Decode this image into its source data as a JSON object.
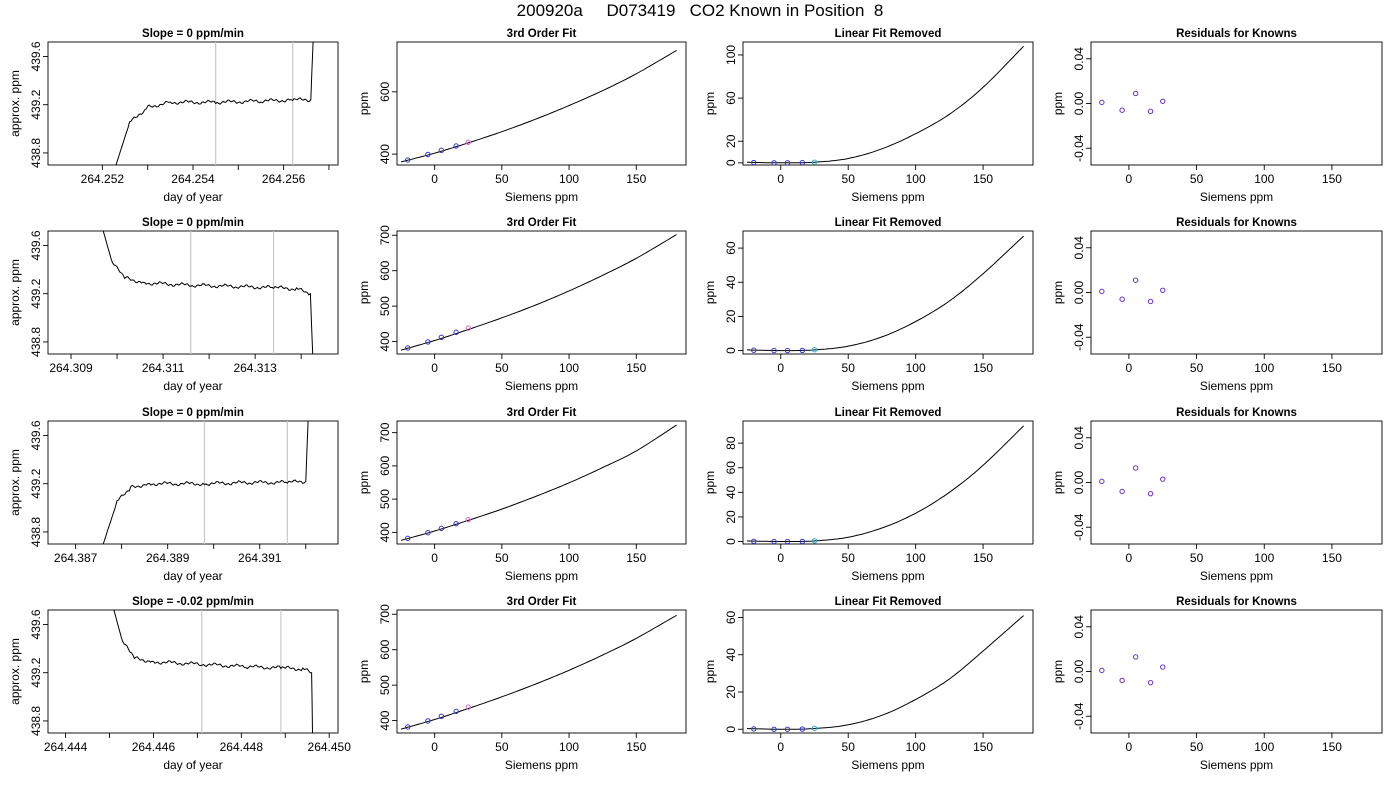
{
  "page": {
    "title": "200920a     D073419   CO2 Known in Position  8"
  },
  "chart_data": [
    {
      "type": "line",
      "row": 0,
      "panel": "timeseries",
      "title": "Slope =  0  ppm/min",
      "xlabel": "day of year",
      "ylabel": "approx. ppm",
      "xlim": [
        264.2508,
        264.2572
      ],
      "ylim": [
        438.7,
        439.72
      ],
      "xticks": [
        264.252,
        264.254,
        264.256
      ],
      "xticks_minor": [
        264.253,
        264.255,
        264.257
      ],
      "yticks": [
        438.8,
        439.2,
        439.6
      ],
      "vlines": [
        264.2545,
        264.2562
      ],
      "series": [
        {
          "x": [
            264.2523,
            264.2526,
            264.253,
            264.2535,
            264.2545,
            264.2555,
            264.2562,
            264.2566,
            264.25665
          ],
          "y": [
            438.7,
            439.05,
            439.18,
            439.22,
            439.22,
            439.23,
            439.24,
            439.24,
            439.72
          ]
        }
      ]
    },
    {
      "type": "line",
      "row": 0,
      "panel": "fit3",
      "title": "3rd Order Fit",
      "xlabel": "Siemens ppm",
      "ylabel": "ppm",
      "xlim": [
        -28,
        187
      ],
      "ylim": [
        365,
        760
      ],
      "xticks": [
        0,
        50,
        100,
        150
      ],
      "yticks": [
        400,
        600
      ],
      "curve": {
        "x": [
          -25,
          0,
          25,
          50,
          75,
          100,
          125,
          150,
          180
        ],
        "y": [
          375,
          403,
          436,
          472,
          512,
          556,
          604,
          658,
          733
        ]
      },
      "points": [
        {
          "x": [
            -20,
            -5,
            5,
            16
          ],
          "y": [
            381,
            399,
            412,
            426
          ],
          "color": "#3333cc"
        },
        {
          "x": [
            25
          ],
          "y": [
            438
          ],
          "color": "#cc66cc"
        }
      ]
    },
    {
      "type": "line",
      "row": 0,
      "panel": "linear-removed",
      "title": "Linear Fit Removed",
      "xlabel": "Siemens ppm",
      "ylabel": "ppm",
      "xlim": [
        -28,
        187
      ],
      "ylim": [
        -2,
        112
      ],
      "xticks": [
        0,
        50,
        100,
        150
      ],
      "yticks": [
        0,
        20,
        60,
        100
      ],
      "curve": {
        "x": [
          -25,
          0,
          25,
          50,
          75,
          100,
          125,
          150,
          180
        ],
        "y": [
          0.5,
          0,
          0.6,
          4,
          13,
          27,
          45,
          70,
          108
        ]
      },
      "points": [
        {
          "x": [
            -20,
            -5,
            5,
            16
          ],
          "y": [
            0.3,
            0,
            0,
            0.2
          ],
          "color": "#3333cc"
        },
        {
          "x": [
            25
          ],
          "y": [
            0.6
          ],
          "color": "#33aacc"
        }
      ]
    },
    {
      "type": "scatter",
      "row": 0,
      "panel": "residuals",
      "title": "Residuals for Knowns",
      "xlabel": "Siemens ppm",
      "ylabel": "ppm",
      "xlim": [
        -28,
        187
      ],
      "ylim": [
        -0.055,
        0.055
      ],
      "xticks": [
        0,
        50,
        100,
        150
      ],
      "yticks": [
        -0.04,
        0.0,
        0.04
      ],
      "ytick_labels": [
        "-0.04",
        "0.00",
        "0.04"
      ],
      "points": [
        {
          "x": [
            -20,
            -5,
            5,
            16,
            25
          ],
          "y": [
            0.001,
            -0.006,
            0.009,
            -0.007,
            0.002
          ],
          "color": "#6633cc"
        }
      ]
    },
    {
      "type": "line",
      "row": 1,
      "panel": "timeseries",
      "title": "Slope =  0  ppm/min",
      "xlabel": "day of year",
      "ylabel": "approx. ppm",
      "xlim": [
        264.3085,
        264.3148
      ],
      "ylim": [
        438.7,
        439.72
      ],
      "xticks": [
        264.309,
        264.311,
        264.313
      ],
      "xticks_minor": [
        264.31,
        264.312,
        264.314
      ],
      "yticks": [
        438.8,
        439.2,
        439.6
      ],
      "vlines": [
        264.3116,
        264.3134
      ],
      "series": [
        {
          "x": [
            264.3097,
            264.3099,
            264.3102,
            264.3106,
            264.3116,
            264.3126,
            264.3134,
            264.3139,
            264.3142,
            264.31425
          ],
          "y": [
            439.72,
            439.45,
            439.33,
            439.29,
            439.27,
            439.26,
            439.25,
            439.24,
            439.2,
            438.7
          ]
        }
      ]
    },
    {
      "type": "line",
      "row": 1,
      "panel": "fit3",
      "title": "3rd Order Fit",
      "xlabel": "Siemens ppm",
      "ylabel": "ppm",
      "xlim": [
        -28,
        187
      ],
      "ylim": [
        365,
        712
      ],
      "xticks": [
        0,
        50,
        100,
        150
      ],
      "yticks": [
        400,
        500,
        600,
        700
      ],
      "curve": {
        "x": [
          -25,
          0,
          25,
          50,
          75,
          100,
          125,
          150,
          180
        ],
        "y": [
          376,
          403,
          434,
          467,
          503,
          543,
          587,
          635,
          702
        ]
      },
      "points": [
        {
          "x": [
            -20,
            -5,
            5,
            16
          ],
          "y": [
            382,
            399,
            412,
            426
          ],
          "color": "#3333cc"
        },
        {
          "x": [
            25
          ],
          "y": [
            438
          ],
          "color": "#cc66cc"
        }
      ]
    },
    {
      "type": "line",
      "row": 1,
      "panel": "linear-removed",
      "title": "Linear Fit Removed",
      "xlabel": "Siemens ppm",
      "ylabel": "ppm",
      "xlim": [
        -28,
        187
      ],
      "ylim": [
        -2,
        70
      ],
      "xticks": [
        0,
        50,
        100,
        150
      ],
      "yticks": [
        0,
        20,
        40,
        60
      ],
      "curve": {
        "x": [
          -25,
          0,
          25,
          50,
          75,
          100,
          125,
          150,
          180
        ],
        "y": [
          0.4,
          0,
          0.4,
          2.6,
          8,
          17,
          29,
          45,
          67
        ]
      },
      "points": [
        {
          "x": [
            -20,
            -5,
            5,
            16
          ],
          "y": [
            0.2,
            0,
            0,
            0.1
          ],
          "color": "#3333cc"
        },
        {
          "x": [
            25
          ],
          "y": [
            0.5
          ],
          "color": "#33aacc"
        }
      ]
    },
    {
      "type": "scatter",
      "row": 1,
      "panel": "residuals",
      "title": "Residuals for Knowns",
      "xlabel": "Siemens ppm",
      "ylabel": "ppm",
      "xlim": [
        -28,
        187
      ],
      "ylim": [
        -0.055,
        0.055
      ],
      "xticks": [
        0,
        50,
        100,
        150
      ],
      "yticks": [
        -0.04,
        0.0,
        0.04
      ],
      "ytick_labels": [
        "-0.04",
        "0.00",
        "0.04"
      ],
      "points": [
        {
          "x": [
            -20,
            -5,
            5,
            16,
            25
          ],
          "y": [
            0.001,
            -0.006,
            0.011,
            -0.008,
            0.002
          ],
          "color": "#6633cc"
        }
      ]
    },
    {
      "type": "line",
      "row": 2,
      "panel": "timeseries",
      "title": "Slope =  0  ppm/min",
      "xlabel": "day of year",
      "ylabel": "approx. ppm",
      "xlim": [
        264.3864,
        264.3927
      ],
      "ylim": [
        438.7,
        439.72
      ],
      "xticks": [
        264.387,
        264.389,
        264.391
      ],
      "xticks_minor": [
        264.388,
        264.39,
        264.392
      ],
      "yticks": [
        438.8,
        439.2,
        439.6
      ],
      "vlines": [
        264.3898,
        264.3916
      ],
      "series": [
        {
          "x": [
            264.3876,
            264.3879,
            264.3882,
            264.3886,
            264.3898,
            264.3908,
            264.3916,
            264.392,
            264.39205
          ],
          "y": [
            438.7,
            439.05,
            439.17,
            439.2,
            439.2,
            439.21,
            439.21,
            439.22,
            439.72
          ]
        }
      ]
    },
    {
      "type": "line",
      "row": 2,
      "panel": "fit3",
      "title": "3rd Order Fit",
      "xlabel": "Siemens ppm",
      "ylabel": "ppm",
      "xlim": [
        -28,
        187
      ],
      "ylim": [
        365,
        735
      ],
      "xticks": [
        0,
        50,
        100,
        150
      ],
      "yticks": [
        400,
        500,
        600,
        700
      ],
      "curve": {
        "x": [
          -25,
          0,
          25,
          50,
          75,
          100,
          125,
          150,
          180
        ],
        "y": [
          376,
          404,
          436,
          470,
          508,
          549,
          595,
          645,
          723
        ]
      },
      "points": [
        {
          "x": [
            -20,
            -5,
            5,
            16
          ],
          "y": [
            382,
            399,
            412,
            426
          ],
          "color": "#3333cc"
        },
        {
          "x": [
            25
          ],
          "y": [
            438
          ],
          "color": "#cc66cc"
        }
      ]
    },
    {
      "type": "line",
      "row": 2,
      "panel": "linear-removed",
      "title": "Linear Fit Removed",
      "xlabel": "Siemens ppm",
      "ylabel": "ppm",
      "xlim": [
        -28,
        187
      ],
      "ylim": [
        -2,
        98
      ],
      "xticks": [
        0,
        50,
        100,
        150
      ],
      "yticks": [
        0,
        20,
        40,
        60,
        80
      ],
      "curve": {
        "x": [
          -25,
          0,
          25,
          50,
          75,
          100,
          125,
          150,
          180
        ],
        "y": [
          0.5,
          0,
          0.5,
          3.5,
          11,
          23,
          40,
          62,
          94
        ]
      },
      "points": [
        {
          "x": [
            -20,
            -5,
            5,
            16
          ],
          "y": [
            0.2,
            0,
            0,
            0.1
          ],
          "color": "#3333cc"
        },
        {
          "x": [
            25
          ],
          "y": [
            0.6
          ],
          "color": "#33aacc"
        }
      ]
    },
    {
      "type": "scatter",
      "row": 2,
      "panel": "residuals",
      "title": "Residuals for Knowns",
      "xlabel": "Siemens ppm",
      "ylabel": "ppm",
      "xlim": [
        -28,
        187
      ],
      "ylim": [
        -0.055,
        0.055
      ],
      "xticks": [
        0,
        50,
        100,
        150
      ],
      "yticks": [
        -0.04,
        0.0,
        0.04
      ],
      "ytick_labels": [
        "-0.04",
        "0.00",
        "0.04"
      ],
      "points": [
        {
          "x": [
            -20,
            -5,
            5,
            16,
            25
          ],
          "y": [
            0.001,
            -0.008,
            0.013,
            -0.01,
            0.003
          ],
          "color": "#6633cc"
        }
      ]
    },
    {
      "type": "line",
      "row": 3,
      "panel": "timeseries",
      "title": "Slope =  -0.02  ppm/min",
      "xlabel": "day of year",
      "ylabel": "approx. ppm",
      "xlim": [
        264.4436,
        264.4502
      ],
      "ylim": [
        438.7,
        439.72
      ],
      "xticks": [
        264.444,
        264.446,
        264.448,
        264.45
      ],
      "xticks_minor": [
        264.445,
        264.447,
        264.449
      ],
      "yticks": [
        438.8,
        439.2,
        439.6
      ],
      "vlines": [
        264.4471,
        264.4489
      ],
      "series": [
        {
          "x": [
            264.4451,
            264.4453,
            264.4456,
            264.446,
            264.4471,
            264.4481,
            264.4489,
            264.4494,
            264.4496,
            264.44962
          ],
          "y": [
            439.72,
            439.45,
            439.32,
            439.29,
            439.27,
            439.25,
            439.24,
            439.23,
            439.2,
            438.7
          ]
        }
      ]
    },
    {
      "type": "line",
      "row": 3,
      "panel": "fit3",
      "title": "3rd Order Fit",
      "xlabel": "Siemens ppm",
      "ylabel": "ppm",
      "xlim": [
        -28,
        187
      ],
      "ylim": [
        365,
        712
      ],
      "xticks": [
        0,
        50,
        100,
        150
      ],
      "yticks": [
        400,
        500,
        600,
        700
      ],
      "curve": {
        "x": [
          -25,
          0,
          25,
          50,
          75,
          100,
          125,
          150,
          180
        ],
        "y": [
          376,
          403,
          434,
          467,
          503,
          542,
          585,
          632,
          697
        ]
      },
      "points": [
        {
          "x": [
            -20,
            -5,
            5,
            16
          ],
          "y": [
            382,
            399,
            412,
            426
          ],
          "color": "#3333cc"
        },
        {
          "x": [
            25
          ],
          "y": [
            438
          ],
          "color": "#cc66cc"
        }
      ]
    },
    {
      "type": "line",
      "row": 3,
      "panel": "linear-removed",
      "title": "Linear Fit Removed",
      "xlabel": "Siemens ppm",
      "ylabel": "ppm",
      "xlim": [
        -28,
        187
      ],
      "ylim": [
        -2,
        64
      ],
      "xticks": [
        0,
        50,
        100,
        150
      ],
      "yticks": [
        0,
        20,
        40,
        60
      ],
      "curve": {
        "x": [
          -25,
          0,
          25,
          50,
          75,
          100,
          125,
          150,
          180
        ],
        "y": [
          0.4,
          0,
          0.4,
          2.4,
          7.5,
          16,
          27,
          42,
          61
        ]
      },
      "points": [
        {
          "x": [
            -20,
            -5,
            5,
            16
          ],
          "y": [
            0.2,
            0,
            0,
            0.1
          ],
          "color": "#3333cc"
        },
        {
          "x": [
            25
          ],
          "y": [
            0.5
          ],
          "color": "#33aacc"
        }
      ]
    },
    {
      "type": "scatter",
      "row": 3,
      "panel": "residuals",
      "title": "Residuals for Knowns",
      "xlabel": "Siemens ppm",
      "ylabel": "ppm",
      "xlim": [
        -28,
        187
      ],
      "ylim": [
        -0.055,
        0.055
      ],
      "xticks": [
        0,
        50,
        100,
        150
      ],
      "yticks": [
        -0.04,
        0.0,
        0.04
      ],
      "ytick_labels": [
        "-0.04",
        "0.00",
        "0.04"
      ],
      "points": [
        {
          "x": [
            -20,
            -5,
            5,
            16,
            25
          ],
          "y": [
            0.001,
            -0.008,
            0.013,
            -0.01,
            0.004
          ],
          "color": "#6633cc"
        }
      ]
    }
  ]
}
